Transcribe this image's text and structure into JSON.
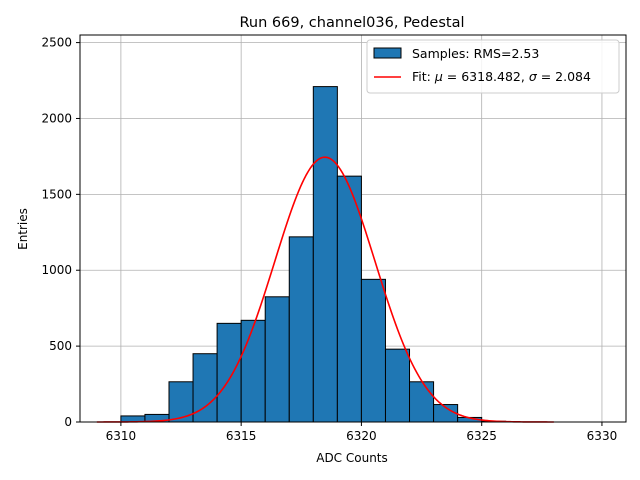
{
  "chart_data": {
    "type": "bar",
    "title": "Run 669, channel036, Pedestal",
    "xlabel": "ADC Counts",
    "ylabel": "Entries",
    "xlim": [
      6308.3,
      6331.0
    ],
    "ylim": [
      0,
      2550
    ],
    "xticks": [
      6310,
      6315,
      6320,
      6325,
      6330
    ],
    "yticks": [
      0,
      500,
      1000,
      1500,
      2000,
      2500
    ],
    "grid": true,
    "legend_position": "top-right",
    "histogram": {
      "name": "Samples: RMS=2.53",
      "color": "#1f77b4",
      "edgecolor": "#000000",
      "bin_width": 1.0,
      "bin_edges_start": [
        6310,
        6311,
        6312,
        6313,
        6314,
        6315,
        6316,
        6317,
        6318,
        6319,
        6320,
        6321,
        6322,
        6323,
        6324,
        6325
      ],
      "values": [
        40,
        50,
        265,
        450,
        650,
        670,
        825,
        1220,
        2210,
        1620,
        940,
        480,
        265,
        115,
        30,
        5
      ]
    },
    "fit": {
      "name_prefix": "Fit: ",
      "name_mu": "μ",
      "name_mid": " = 6318.482, ",
      "name_sigma": "σ",
      "name_suffix": " = 2.084",
      "color": "#ff0000",
      "mu": 6318.482,
      "sigma": 2.084,
      "amplitude": 1745,
      "x_range": [
        6309,
        6328
      ]
    }
  }
}
